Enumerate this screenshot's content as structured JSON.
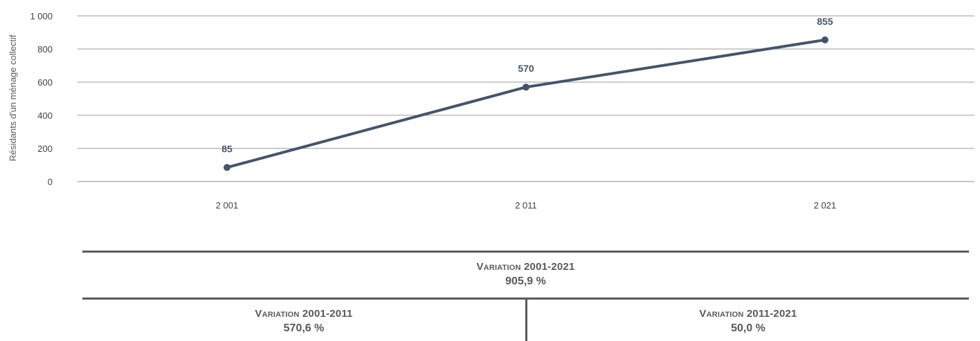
{
  "chart_data": {
    "type": "line",
    "title": "",
    "xlabel": "",
    "ylabel": "Résidants d'un ménage collectif",
    "x": [
      2001,
      2011,
      2021
    ],
    "x_tick_labels": [
      "2 001",
      "2 011",
      "2 021"
    ],
    "y_ticks": [
      0,
      200,
      400,
      600,
      800,
      1000
    ],
    "y_tick_labels": [
      "0",
      "200",
      "400",
      "600",
      "800",
      "1 000"
    ],
    "ylim": [
      0,
      1000
    ],
    "grid": true,
    "legend": "none",
    "series": [
      {
        "values": [
          85,
          570,
          855
        ],
        "data_labels": [
          "85",
          "570",
          "855"
        ],
        "color": "#44546a"
      }
    ]
  },
  "variations": {
    "total": {
      "title": "Variation 2001-2021",
      "value": "905,9 %"
    },
    "first": {
      "title": "Variation 2001-2011",
      "value": "570,6 %"
    },
    "second": {
      "title": "Variation 2011-2021",
      "value": "50,0 %"
    }
  }
}
